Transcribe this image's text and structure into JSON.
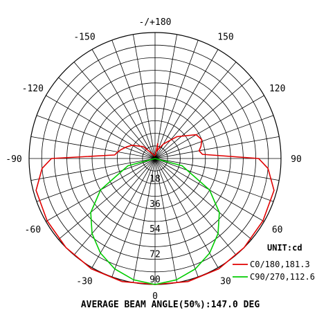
{
  "chart_data": {
    "type": "polar",
    "title": "",
    "unit_label": "UNIT:cd",
    "footer": "AVERAGE BEAM ANGLE(50%):147.0 DEG",
    "rmax": 90,
    "radial_ticks": [
      "18",
      "36",
      "54",
      "72",
      "90"
    ],
    "radial_values": [
      18,
      36,
      54,
      72,
      90
    ],
    "angle_labels": [
      {
        "angle": 180,
        "label": "-/+180"
      },
      {
        "angle": 150,
        "label": "150"
      },
      {
        "angle": 120,
        "label": "120"
      },
      {
        "angle": 90,
        "label": "90"
      },
      {
        "angle": 60,
        "label": "60"
      },
      {
        "angle": 30,
        "label": "30"
      },
      {
        "angle": 0,
        "label": "0"
      },
      {
        "angle": -30,
        "label": "-30"
      },
      {
        "angle": -60,
        "label": "-60"
      },
      {
        "angle": -90,
        "label": "-90"
      },
      {
        "angle": -120,
        "label": "-120"
      },
      {
        "angle": -150,
        "label": "-150"
      }
    ],
    "grid": true,
    "legend_position": "bottom-right",
    "series": [
      {
        "name": "C0/180,181.3",
        "color": "#e00000",
        "points": [
          [
            -175,
            2
          ],
          [
            -165,
            2
          ],
          [
            -150,
            4
          ],
          [
            -135,
            12
          ],
          [
            -120,
            19
          ],
          [
            -112,
            22
          ],
          [
            -105,
            25
          ],
          [
            -100,
            27
          ],
          [
            -95,
            29
          ],
          [
            -90,
            74
          ],
          [
            -85,
            81
          ],
          [
            -75,
            88
          ],
          [
            -60,
            89
          ],
          [
            -45,
            90
          ],
          [
            -30,
            91
          ],
          [
            -15,
            91
          ],
          [
            0,
            90
          ],
          [
            15,
            91
          ],
          [
            30,
            91
          ],
          [
            45,
            90
          ],
          [
            60,
            89
          ],
          [
            75,
            88
          ],
          [
            85,
            81
          ],
          [
            90,
            74
          ],
          [
            95,
            34
          ],
          [
            100,
            32
          ],
          [
            105,
            34
          ],
          [
            112,
            36
          ],
          [
            120,
            34
          ],
          [
            135,
            22
          ],
          [
            150,
            12
          ],
          [
            165,
            6
          ],
          [
            170,
            11
          ],
          [
            172,
            3
          ],
          [
            175,
            2
          ]
        ]
      },
      {
        "name": "C90/270,112.6",
        "color": "#00cc00",
        "points": [
          [
            -90,
            0
          ],
          [
            -75,
            20
          ],
          [
            -60,
            45
          ],
          [
            -50,
            60
          ],
          [
            -40,
            70
          ],
          [
            -30,
            78
          ],
          [
            -20,
            84
          ],
          [
            -10,
            88
          ],
          [
            0,
            90
          ],
          [
            10,
            88
          ],
          [
            20,
            84
          ],
          [
            30,
            78
          ],
          [
            40,
            70
          ],
          [
            50,
            60
          ],
          [
            60,
            45
          ],
          [
            75,
            20
          ],
          [
            90,
            0
          ]
        ]
      }
    ]
  }
}
